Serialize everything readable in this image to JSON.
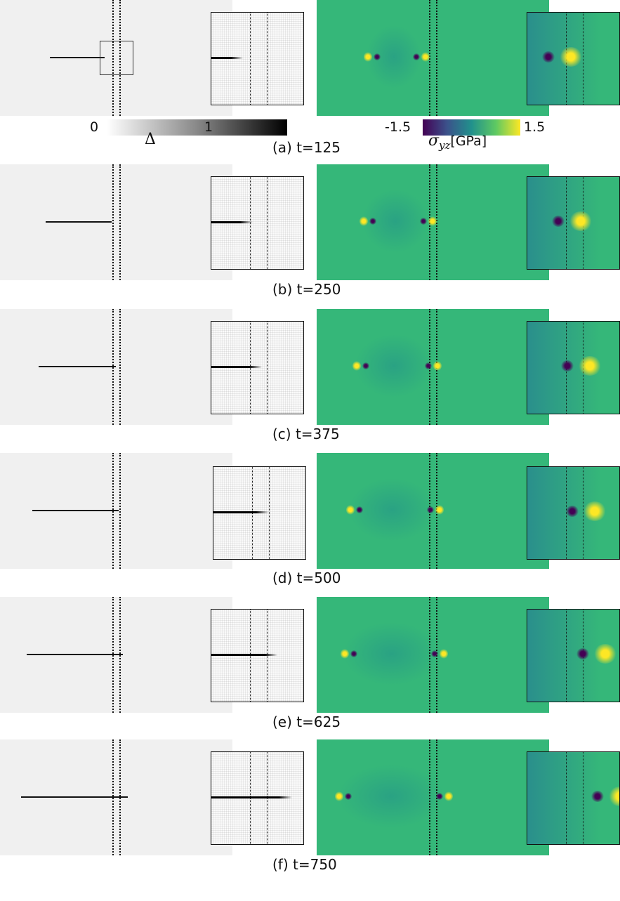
{
  "colorbars": {
    "damage": {
      "min": "0",
      "max": "1",
      "label": "Δ"
    },
    "stress": {
      "min": "-1.5",
      "max": "1.5",
      "label_symbol": "σ",
      "label_sub": "yz",
      "label_unit": "[GPa]"
    }
  },
  "panels": [
    {
      "caption": "(a) t=125",
      "crack_start": 0.215,
      "crack_end": 0.45,
      "zoom_crack_end": 0.34
    },
    {
      "caption": "(b) t=250",
      "crack_start": 0.195,
      "crack_end": 0.48,
      "zoom_crack_end": 0.45
    },
    {
      "caption": "(c) t=375",
      "crack_start": 0.165,
      "crack_end": 0.5,
      "zoom_crack_end": 0.55
    },
    {
      "caption": "(d) t=500",
      "crack_start": 0.14,
      "crack_end": 0.51,
      "zoom_crack_end": 0.6
    },
    {
      "caption": "(e) t=625",
      "crack_start": 0.115,
      "crack_end": 0.53,
      "zoom_crack_end": 0.72
    },
    {
      "caption": "(f) t=750",
      "crack_start": 0.09,
      "crack_end": 0.55,
      "zoom_crack_end": 0.88
    }
  ],
  "colors": {
    "viridis_mid": "#35b779",
    "viridis_low": "#440154",
    "viridis_high": "#fde725",
    "damage_field": "#f0f0f0"
  }
}
